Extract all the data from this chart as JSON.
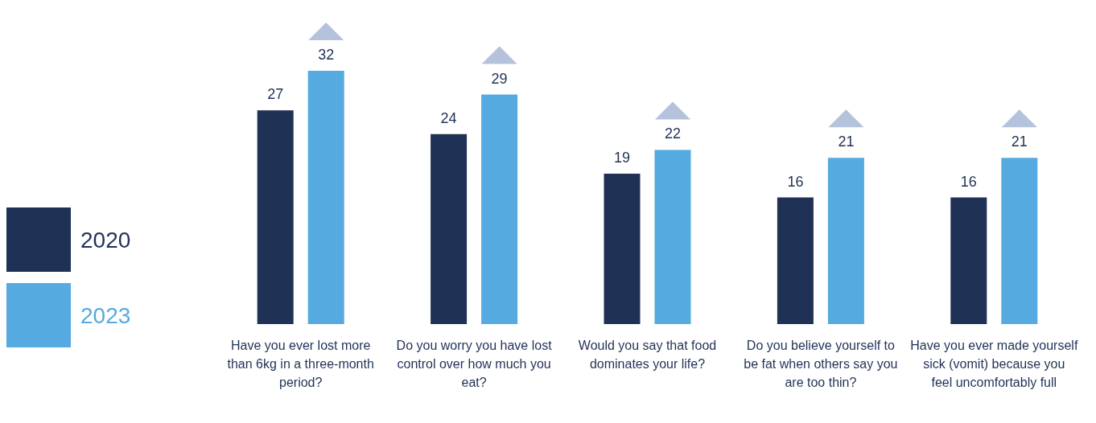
{
  "chart_data": {
    "type": "bar",
    "categories": [
      "Have you ever lost more than 6kg in a three-month period?",
      "Do you worry you have lost control over how much you eat?",
      "Would you say that food dominates your life?",
      "Do you believe yourself to be fat when others say you are too thin?",
      "Have you ever made yourself sick (vomit) because you feel uncomfortably full"
    ],
    "series": [
      {
        "name": "2020",
        "color": "#1f3155",
        "values": [
          27,
          24,
          19,
          16,
          16
        ]
      },
      {
        "name": "2023",
        "color": "#55aadf",
        "values": [
          32,
          29,
          22,
          21,
          21
        ]
      }
    ],
    "data_labels": true,
    "legend": "left"
  }
}
